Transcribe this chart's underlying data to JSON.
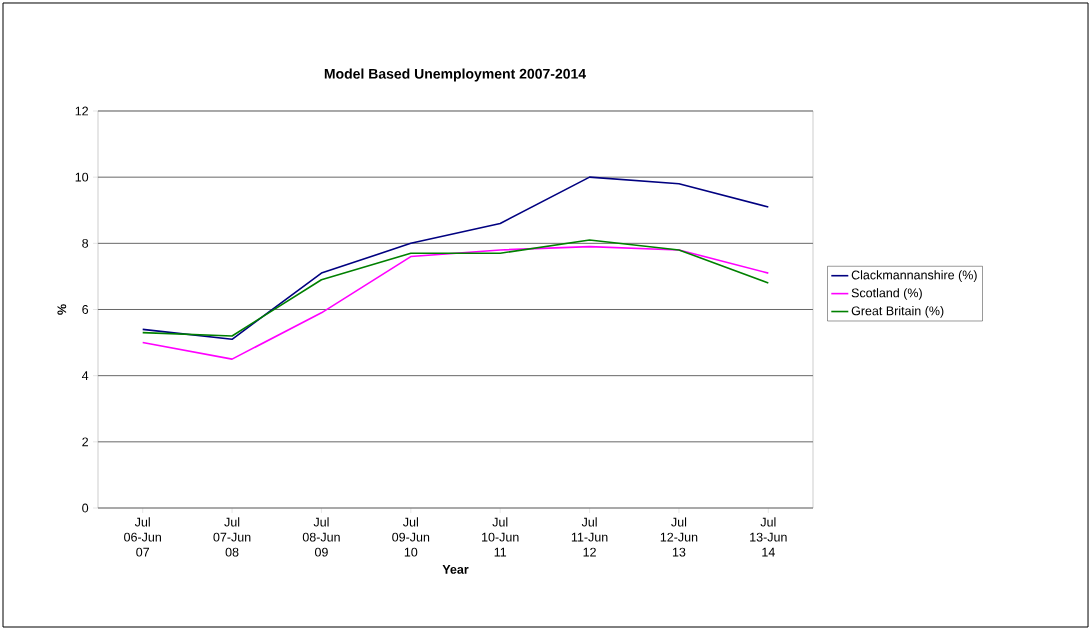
{
  "chart_data": {
    "type": "line",
    "title": "Model Based Unemployment 2007-2014",
    "xlabel": "Year",
    "ylabel": "%",
    "categories": [
      "Jul 06-Jun 07",
      "Jul 07-Jun 08",
      "Jul 08-Jun 09",
      "Jul 09-Jun 10",
      "Jul 10-Jun 11",
      "Jul 11-Jun 12",
      "Jul 12-Jun 13",
      "Jul 13-Jun 14"
    ],
    "series": [
      {
        "name": "Clackmannanshire (%)",
        "color": "#000080",
        "values": [
          5.4,
          5.1,
          7.1,
          8.0,
          8.6,
          10.0,
          9.8,
          9.1
        ]
      },
      {
        "name": "Scotland (%)",
        "color": "#ff00ff",
        "values": [
          5.0,
          4.5,
          5.9,
          7.6,
          7.8,
          7.9,
          7.8,
          7.1
        ]
      },
      {
        "name": "Great Britain (%)",
        "color": "#008000",
        "values": [
          5.3,
          5.2,
          6.9,
          7.7,
          7.7,
          8.1,
          7.8,
          6.8
        ]
      }
    ],
    "ylim": [
      0,
      12
    ],
    "yticks": [
      0,
      2,
      4,
      6,
      8,
      10,
      12
    ],
    "grid": "y",
    "legend": "right",
    "marker": "none",
    "line_style": "solid"
  }
}
